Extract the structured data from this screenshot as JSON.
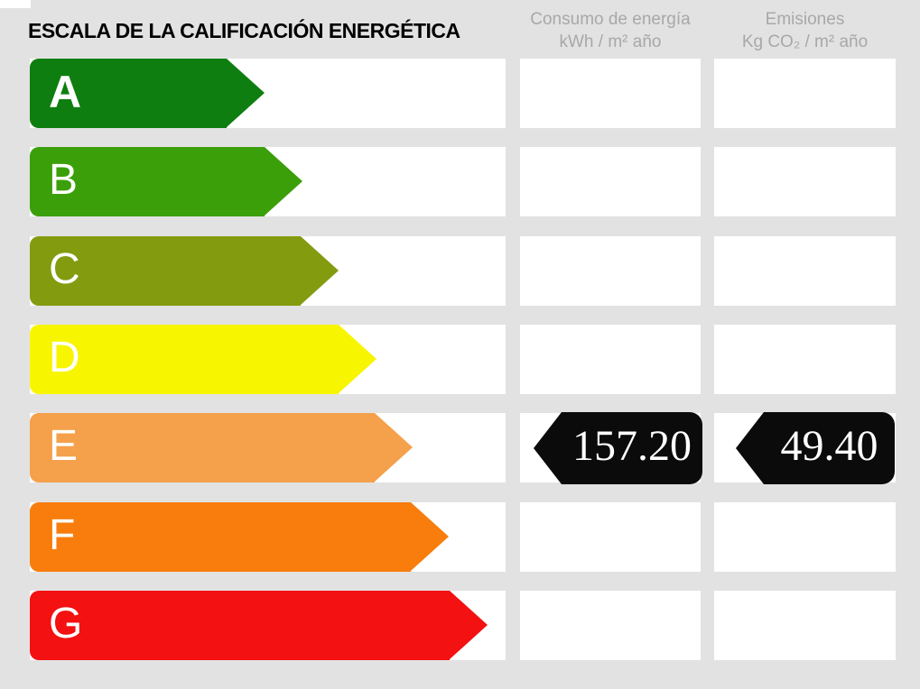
{
  "title": "ESCALA DE LA CALIFICACIÓN ENERGÉTICA",
  "columns": {
    "consumption": {
      "line1": "Consumo de energía",
      "line2": "kWh / m² año"
    },
    "emissions": {
      "line1": "Emisiones",
      "line2": "Kg CO₂ / m² año"
    }
  },
  "scale": {
    "ratings": [
      {
        "letter": "A",
        "color": "#0e7e10",
        "arrow_length": 260
      },
      {
        "letter": "B",
        "color": "#3b9f0a",
        "arrow_length": 302
      },
      {
        "letter": "C",
        "color": "#839b0f",
        "arrow_length": 342
      },
      {
        "letter": "D",
        "color": "#f7f500",
        "arrow_length": 384
      },
      {
        "letter": "E",
        "color": "#f5a04a",
        "arrow_length": 424
      },
      {
        "letter": "F",
        "color": "#f87d0c",
        "arrow_length": 464
      },
      {
        "letter": "G",
        "color": "#f31111",
        "arrow_length": 507
      }
    ]
  },
  "result": {
    "rating_letter": "E",
    "consumption_value": "157.20",
    "emissions_value": "49.40",
    "arrow_color": "#0b0b0b",
    "value_text_color": "#ffffff"
  },
  "chart_data": {
    "type": "bar",
    "title": "ESCALA DE LA CALIFICACIÓN ENERGÉTICA",
    "categories": [
      "A",
      "B",
      "C",
      "D",
      "E",
      "F",
      "G"
    ],
    "bar_colors": [
      "#0e7e10",
      "#3b9f0a",
      "#839b0f",
      "#f7f500",
      "#f5a04a",
      "#f87d0c",
      "#f31111"
    ],
    "bar_relative_lengths": [
      260,
      302,
      342,
      384,
      424,
      464,
      507
    ],
    "assigned_rating": "E",
    "values": [
      {
        "label": "Consumo de energía (kWh / m² año)",
        "value": 157.2
      },
      {
        "label": "Emisiones (Kg CO₂ / m² año)",
        "value": 49.4
      }
    ],
    "legend_position": "none",
    "grid": false
  },
  "colors": {
    "background": "#e2e2e2",
    "cell_background": "#ffffff",
    "header_text": "#a8a8a8",
    "title_text": "#000000"
  }
}
